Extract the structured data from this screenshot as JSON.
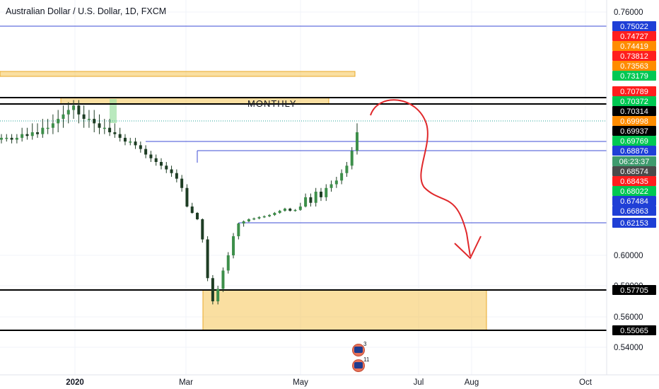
{
  "header": {
    "title": "Australian Dollar / U.S. Dollar, 1D, FXCM"
  },
  "annotations": {
    "monthly_label": "MONTHLY"
  },
  "events": [
    {
      "icon": "australia-flag-icon",
      "count": "3"
    },
    {
      "icon": "australia-flag-icon",
      "count": "11"
    }
  ],
  "colors": {
    "up": "#26a69a",
    "down": "#ef5350",
    "candle_body": "#3d8f4a",
    "zone": "#f6c453",
    "hline": "#3d4cd6",
    "arrow": "#e0282b",
    "green_tag": "#00c853",
    "red_tag": "#ff1e1e",
    "orange_tag": "#ff8c00",
    "blue_tag": "#1f3fd6",
    "black_tag": "#000000",
    "gray_tag": "#4a4a4a",
    "countdown_tag": "#3f9b6e"
  },
  "chart_data": {
    "type": "candlestick",
    "title": "Australian Dollar / U.S. Dollar, 1D, FXCM",
    "x_ticks": [
      "2020",
      "Mar",
      "May",
      "Jul",
      "Aug",
      "Oct"
    ],
    "y_ticks": [
      "0.76000",
      "0.60000",
      "0.58000",
      "0.56000",
      "0.54000"
    ],
    "ylim": [
      0.535,
      0.77
    ],
    "grid": true,
    "price_tags": [
      {
        "label": "0.75022",
        "color": "blue"
      },
      {
        "label": "0.74727",
        "color": "red"
      },
      {
        "label": "0.74419",
        "color": "orange"
      },
      {
        "label": "0.73812",
        "color": "red"
      },
      {
        "label": "0.73563",
        "color": "orange"
      },
      {
        "label": "0.73179",
        "color": "green"
      },
      {
        "label": "0.70789",
        "color": "red"
      },
      {
        "label": "0.70372",
        "color": "green"
      },
      {
        "label": "0.70314",
        "color": "black"
      },
      {
        "label": "0.69998",
        "color": "orange"
      },
      {
        "label": "0.69937",
        "color": "black"
      },
      {
        "label": "0.69769",
        "color": "green"
      },
      {
        "label": "0.68876",
        "color": "blue"
      },
      {
        "label": "06:23:37",
        "color": "countdown"
      },
      {
        "label": "0.68574",
        "color": "gray"
      },
      {
        "label": "0.68435",
        "color": "red"
      },
      {
        "label": "0.68022",
        "color": "green"
      },
      {
        "label": "0.67484",
        "color": "blue"
      },
      {
        "label": "0.66863",
        "color": "blue"
      },
      {
        "label": "0.62153",
        "color": "blue"
      },
      {
        "label": "0.57705",
        "color": "black"
      },
      {
        "label": "0.55065",
        "color": "black"
      }
    ],
    "horizontal_lines": [
      {
        "price": 0.75022,
        "color": "blue"
      },
      {
        "price": 0.70789,
        "color": "black"
      },
      {
        "price": 0.70372,
        "color": "black"
      },
      {
        "price": 0.69769,
        "color": "blue"
      },
      {
        "price": 0.68876,
        "color": "blue"
      },
      {
        "price": 0.62153,
        "color": "blue"
      },
      {
        "price": 0.57705,
        "color": "black"
      },
      {
        "price": 0.55065,
        "color": "black"
      }
    ],
    "zones": [
      {
        "name": "upper-zone",
        "from": 0.7345,
        "to": 0.7375
      },
      {
        "name": "monthly-zone",
        "from": 0.7037,
        "to": 0.7079,
        "label": "MONTHLY"
      },
      {
        "name": "support-zone",
        "from": 0.5507,
        "to": 0.5771
      }
    ],
    "closes": [
      0.697,
      0.697,
      0.696,
      0.697,
      0.699,
      0.698,
      0.7,
      0.699,
      0.701,
      0.701,
      0.702,
      0.703,
      0.704,
      0.705,
      0.706,
      0.704,
      0.703,
      0.703,
      0.702,
      0.701,
      0.701,
      0.7,
      0.699,
      0.697,
      0.695,
      0.695,
      0.693,
      0.691,
      0.688,
      0.686,
      0.684,
      0.682,
      0.68,
      0.678,
      0.675,
      0.67,
      0.66,
      0.645,
      0.63,
      0.61,
      0.585,
      0.57,
      0.578,
      0.59,
      0.6,
      0.612,
      0.62,
      0.625,
      0.63,
      0.632,
      0.635,
      0.637,
      0.64,
      0.645,
      0.65,
      0.655,
      0.65,
      0.652,
      0.66,
      0.665,
      0.662,
      0.668,
      0.665,
      0.67,
      0.672,
      0.674,
      0.678,
      0.682,
      0.69,
      0.7
    ]
  }
}
